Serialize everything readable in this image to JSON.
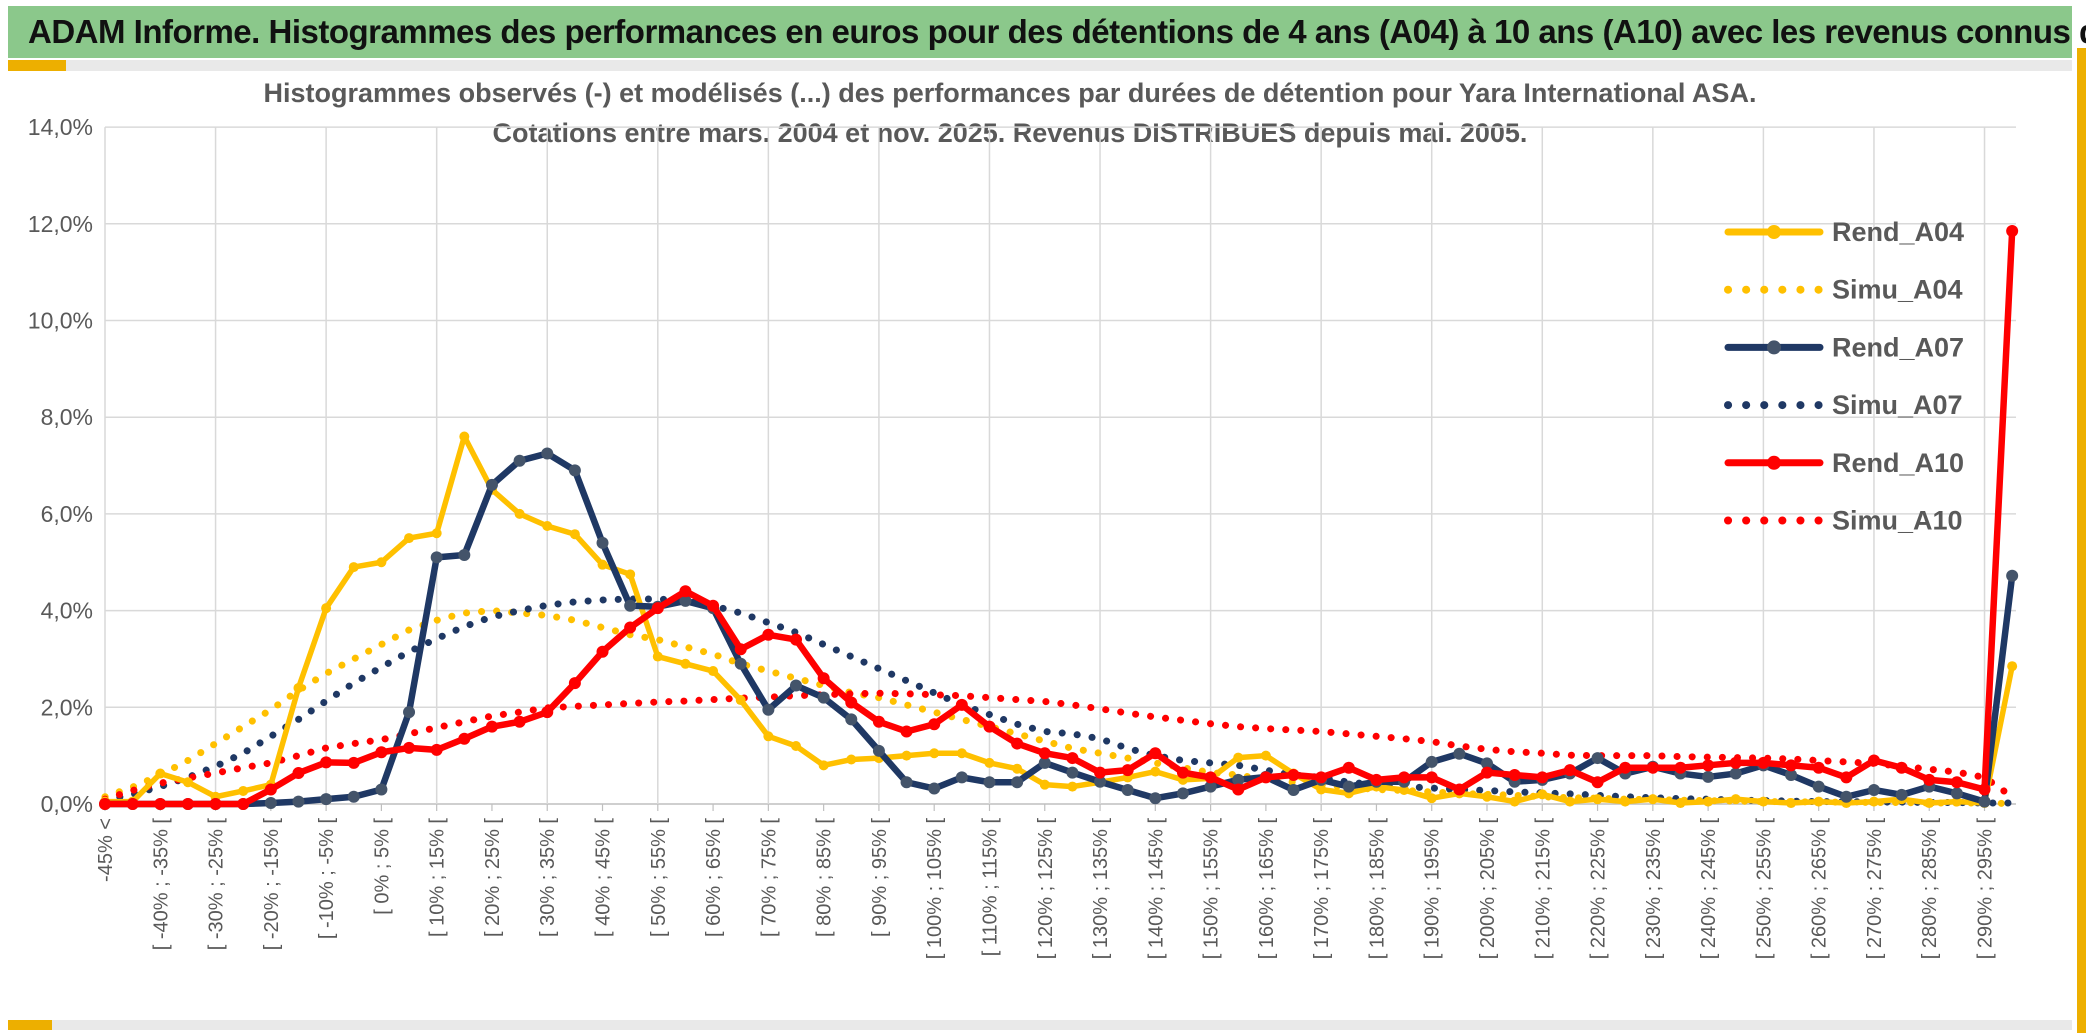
{
  "window": {
    "banner_title": "ADAM Informe. Histogrammes des performances en euros pour des détentions de 4 ans (A04) à 10 ans (A10) avec les revenus connus distribués"
  },
  "chart_data": {
    "type": "line",
    "title_line1": "Histogrammes observés (-) et modélisés (...) des performances par durées de détention pour Yara International ASA.",
    "title_line2": "Cotations entre mars. 2004 et nov. 2025. Revenus DISTRIBUES depuis mai. 2005.",
    "ylabel": "",
    "xlabel": "",
    "ylim": [
      0,
      14
    ],
    "y_tick_step_pct": 2,
    "grid": "on",
    "legend_position": "right-inside",
    "number_format": "french-percent",
    "y_tick_labels": [
      "0,0%",
      "2,0%",
      "4,0%",
      "6,0%",
      "8,0%",
      "10,0%",
      "12,0%",
      "14,0%"
    ],
    "x_tick_labels": [
      "-45% <",
      "[ -40% ; -35% [",
      "[ -30% ; -25% [",
      "[ -20% ; -15% [",
      "[ -10% ; -5% [",
      "[ 0% ; 5% [",
      "[ 10% ; 15% [",
      "[ 20% ; 25% [",
      "[ 30% ; 35% [",
      "[ 40% ; 45% [",
      "[ 50% ; 55% [",
      "[ 60% ; 65% [",
      "[ 70% ; 75% [",
      "[ 80% ; 85% [",
      "[ 90% ; 95% [",
      "[ 100% ; 105% [",
      "[ 110% ; 115% [",
      "[ 120% ; 125% [",
      "[ 130% ; 135% [",
      "[ 140% ; 145% [",
      "[ 150% ; 155% [",
      "[ 160% ; 165% [",
      "[ 170% ; 175% [",
      "[ 180% ; 185% [",
      "[ 190% ; 195% [",
      "[ 200% ; 205% [",
      "[ 210% ; 215% [",
      "[ 220% ; 225% [",
      "[ 230% ; 235% [",
      "[ 240% ; 245% [",
      "[ 250% ; 255% [",
      "[ 260% ; 265% [",
      "[ 270% ; 275% [",
      "[ 280% ; 285% [",
      "[ 290% ; 295% ["
    ],
    "bins_note": "70 bins of 5% width from <-45% to >295%; axis labels shown on every second bin",
    "colors": {
      "gold": "#FFC000",
      "navy": "#1F3864",
      "navy_marker": "#44546A",
      "red": "#FF0000",
      "gridline": "#D9D9D9",
      "axis": "#BFBFBF",
      "text": "#595959"
    },
    "series": [
      {
        "name": "Rend_A04",
        "color": "#FFC000",
        "style": "solid",
        "marker": true,
        "values": [
          0.05,
          0.05,
          0.63,
          0.45,
          0.15,
          0.27,
          0.4,
          2.4,
          4.05,
          4.9,
          5.0,
          5.5,
          5.6,
          7.6,
          6.5,
          6.0,
          5.75,
          5.58,
          4.95,
          4.75,
          3.05,
          2.9,
          2.75,
          2.15,
          1.4,
          1.2,
          0.8,
          0.92,
          0.95,
          1.0,
          1.05,
          1.05,
          0.85,
          0.73,
          0.4,
          0.36,
          0.45,
          0.55,
          0.67,
          0.5,
          0.53,
          0.96,
          1.0,
          0.63,
          0.3,
          0.22,
          0.36,
          0.29,
          0.12,
          0.22,
          0.15,
          0.05,
          0.2,
          0.05,
          0.1,
          0.05,
          0.1,
          0.02,
          0.05,
          0.1,
          0.05,
          0.02,
          0.05,
          0.02,
          0.05,
          0.1,
          0.02,
          0.05,
          0.02,
          2.85
        ]
      },
      {
        "name": "Simu_A04",
        "color": "#FFC000",
        "style": "dotted",
        "marker": false,
        "values": [
          0.15,
          0.35,
          0.6,
          0.9,
          1.25,
          1.6,
          1.95,
          2.35,
          2.7,
          3.0,
          3.3,
          3.6,
          3.8,
          3.95,
          4.0,
          3.95,
          3.9,
          3.8,
          3.65,
          3.5,
          3.4,
          3.25,
          3.1,
          2.9,
          2.75,
          2.6,
          2.45,
          2.3,
          2.2,
          2.05,
          1.9,
          1.75,
          1.6,
          1.45,
          1.3,
          1.15,
          1.05,
          0.95,
          0.85,
          0.75,
          0.65,
          0.6,
          0.5,
          0.45,
          0.4,
          0.35,
          0.3,
          0.28,
          0.25,
          0.22,
          0.2,
          0.18,
          0.15,
          0.13,
          0.12,
          0.1,
          0.09,
          0.08,
          0.07,
          0.06,
          0.05,
          0.05,
          0.04,
          0.04,
          0.03,
          0.03,
          0.02,
          0.02,
          0.02,
          0.01
        ]
      },
      {
        "name": "Rend_A07",
        "color": "#1F3864",
        "style": "solid",
        "marker": true,
        "values": [
          0,
          0,
          0,
          0,
          0,
          0,
          0.02,
          0.05,
          0.1,
          0.15,
          0.3,
          1.9,
          5.1,
          5.15,
          6.6,
          7.1,
          7.25,
          6.9,
          5.4,
          4.1,
          4.08,
          4.2,
          4.05,
          2.9,
          1.95,
          2.45,
          2.2,
          1.75,
          1.1,
          0.45,
          0.32,
          0.55,
          0.45,
          0.45,
          0.85,
          0.65,
          0.46,
          0.29,
          0.12,
          0.22,
          0.36,
          0.5,
          0.56,
          0.29,
          0.5,
          0.36,
          0.46,
          0.46,
          0.87,
          1.04,
          0.84,
          0.46,
          0.5,
          0.63,
          0.95,
          0.63,
          0.77,
          0.63,
          0.56,
          0.63,
          0.8,
          0.6,
          0.36,
          0.15,
          0.29,
          0.19,
          0.36,
          0.22,
          0.05,
          4.72
        ]
      },
      {
        "name": "Simu_A07",
        "color": "#1F3864",
        "style": "dotted",
        "marker": false,
        "values": [
          0.08,
          0.2,
          0.36,
          0.55,
          0.78,
          1.05,
          1.4,
          1.75,
          2.13,
          2.5,
          2.83,
          3.15,
          3.42,
          3.67,
          3.87,
          4.0,
          4.11,
          4.18,
          4.22,
          4.24,
          4.24,
          4.2,
          4.1,
          3.95,
          3.75,
          3.55,
          3.3,
          3.05,
          2.8,
          2.55,
          2.3,
          2.05,
          1.85,
          1.65,
          1.5,
          1.45,
          1.35,
          1.15,
          1.0,
          0.9,
          0.85,
          0.8,
          0.7,
          0.6,
          0.55,
          0.45,
          0.4,
          0.36,
          0.33,
          0.3,
          0.28,
          0.25,
          0.23,
          0.21,
          0.18,
          0.15,
          0.13,
          0.11,
          0.1,
          0.08,
          0.07,
          0.06,
          0.05,
          0.05,
          0.04,
          0.04,
          0.03,
          0.03,
          0.02,
          0.02
        ]
      },
      {
        "name": "Rend_A10",
        "color": "#FF0000",
        "style": "solid",
        "marker": true,
        "values": [
          0,
          0,
          0,
          0,
          0,
          0,
          0.3,
          0.64,
          0.86,
          0.85,
          1.07,
          1.16,
          1.12,
          1.35,
          1.6,
          1.7,
          1.9,
          2.5,
          3.15,
          3.65,
          4.05,
          4.4,
          4.1,
          3.2,
          3.5,
          3.4,
          2.6,
          2.1,
          1.7,
          1.5,
          1.65,
          2.05,
          1.6,
          1.25,
          1.05,
          0.95,
          0.65,
          0.7,
          1.05,
          0.65,
          0.55,
          0.3,
          0.55,
          0.6,
          0.55,
          0.75,
          0.5,
          0.55,
          0.55,
          0.3,
          0.65,
          0.6,
          0.55,
          0.7,
          0.45,
          0.75,
          0.75,
          0.75,
          0.8,
          0.85,
          0.85,
          0.8,
          0.75,
          0.55,
          0.9,
          0.75,
          0.5,
          0.45,
          0.3,
          11.85
        ]
      },
      {
        "name": "Simu_A10",
        "color": "#FF0000",
        "style": "dotted",
        "marker": false,
        "values": [
          0.1,
          0.28,
          0.43,
          0.54,
          0.64,
          0.75,
          0.85,
          1.0,
          1.16,
          1.25,
          1.33,
          1.45,
          1.58,
          1.7,
          1.82,
          1.9,
          1.99,
          2.02,
          2.05,
          2.08,
          2.11,
          2.13,
          2.16,
          2.19,
          2.21,
          2.24,
          2.26,
          2.28,
          2.29,
          2.28,
          2.26,
          2.24,
          2.2,
          2.16,
          2.12,
          2.05,
          1.97,
          1.88,
          1.8,
          1.73,
          1.66,
          1.6,
          1.56,
          1.53,
          1.5,
          1.45,
          1.4,
          1.35,
          1.29,
          1.2,
          1.13,
          1.08,
          1.05,
          1.01,
          1.0,
          1.0,
          1.0,
          0.98,
          0.97,
          0.96,
          0.95,
          0.93,
          0.9,
          0.87,
          0.84,
          0.78,
          0.72,
          0.66,
          0.55,
          0.15
        ]
      }
    ]
  }
}
